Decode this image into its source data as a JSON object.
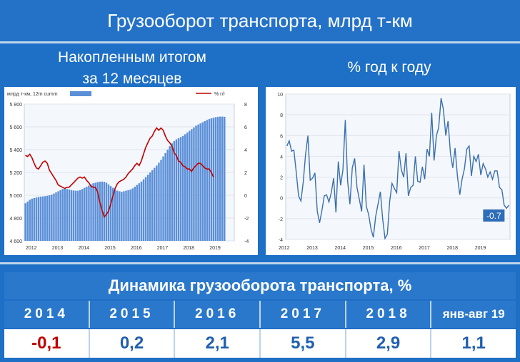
{
  "header": {
    "title": "Грузооборот транспорта, млрд т-км"
  },
  "left_subtitle": {
    "line1": "Накопленным итогом",
    "line2": "за 12 месяцев"
  },
  "right_subtitle": "% год к году",
  "chart_data": [
    {
      "type": "bar+line",
      "legend": {
        "bar_label": "млрд т-км, 12m cumm",
        "line_label": "% г/г"
      },
      "x_ticks": [
        "2012",
        "2013",
        "2014",
        "2015",
        "2016",
        "2017",
        "2018",
        "2019"
      ],
      "y_left": {
        "ticks": [
          "4 600",
          "4 800",
          "5 000",
          "5 200",
          "5 400",
          "5 600",
          "5 800"
        ],
        "range": [
          4600,
          5800
        ]
      },
      "y_right": {
        "ticks": [
          "-4",
          "-2",
          "0",
          "2",
          "4",
          "6",
          "8"
        ],
        "range": [
          -4,
          8
        ]
      },
      "bar_color": "#5b8fd8",
      "line_color": "#c00000",
      "series": [
        {
          "name": "млрд т-км, 12m cumm",
          "axis": "left",
          "kind": "bar",
          "step_months": 1,
          "values": [
            4930,
            4945,
            4960,
            4970,
            4975,
            4980,
            4985,
            4988,
            4990,
            4992,
            4995,
            5000,
            5005,
            5015,
            5025,
            5035,
            5045,
            5055,
            5060,
            5055,
            5050,
            5045,
            5042,
            5040,
            5040,
            5045,
            5055,
            5065,
            5075,
            5085,
            5095,
            5105,
            5110,
            5115,
            5118,
            5120,
            5118,
            5110,
            5095,
            5080,
            5065,
            5050,
            5040,
            5035,
            5030,
            5035,
            5040,
            5045,
            5050,
            5060,
            5075,
            5090,
            5105,
            5120,
            5140,
            5160,
            5180,
            5200,
            5220,
            5240,
            5260,
            5285,
            5310,
            5340,
            5370,
            5400,
            5430,
            5455,
            5475,
            5490,
            5500,
            5510,
            5520,
            5535,
            5550,
            5565,
            5580,
            5595,
            5610,
            5620,
            5630,
            5640,
            5650,
            5660,
            5668,
            5675,
            5680,
            5685,
            5688,
            5690,
            5690,
            5688
          ]
        },
        {
          "name": "% г/г",
          "axis": "right",
          "kind": "line",
          "step_months": 1,
          "values": [
            3.5,
            3.4,
            3.6,
            3.3,
            2.8,
            2.4,
            2.3,
            2.6,
            2.9,
            3.0,
            2.8,
            2.2,
            1.9,
            1.6,
            1.3,
            0.9,
            0.8,
            0.7,
            0.6,
            0.7,
            0.7,
            0.9,
            1.1,
            1.3,
            1.5,
            1.6,
            1.5,
            1.6,
            1.3,
            1.1,
            0.8,
            0.7,
            0.7,
            0.3,
            -0.6,
            -1.3,
            -1.9,
            -1.7,
            -1.4,
            -0.8,
            -0.1,
            0.6,
            1.0,
            1.2,
            1.3,
            1.4,
            1.6,
            1.9,
            2.1,
            2.3,
            2.6,
            2.8,
            2.6,
            3.0,
            3.6,
            4.2,
            4.6,
            5.0,
            5.2,
            5.6,
            5.9,
            5.7,
            5.9,
            5.7,
            5.2,
            4.8,
            4.6,
            4.3,
            3.7,
            3.5,
            3.0,
            2.9,
            2.6,
            2.5,
            2.3,
            2.3,
            2.1,
            2.4,
            2.6,
            2.8,
            2.8,
            2.6,
            2.4,
            2.3,
            2.3,
            2.0,
            1.6
          ]
        }
      ]
    },
    {
      "type": "line",
      "x_ticks": [
        "2012",
        "2013",
        "2014",
        "2015",
        "2016",
        "2017",
        "2018",
        "2019"
      ],
      "y": {
        "ticks": [
          "-4",
          "-2",
          "0",
          "2",
          "4",
          "6",
          "8",
          "10"
        ],
        "range": [
          -4,
          10
        ]
      },
      "line_color": "#3a6fb0",
      "last_value_label": "-0.7",
      "series": [
        {
          "name": "% год к году",
          "step_months": 1,
          "values": [
            5.0,
            5.5,
            4.5,
            4.6,
            2.5,
            0.2,
            -0.3,
            1.5,
            4.2,
            6.0,
            1.7,
            1.9,
            2.4,
            -1.3,
            -2.4,
            -1.2,
            0.2,
            0.3,
            -0.4,
            0.5,
            1.9,
            -1.4,
            3.5,
            1.2,
            2.7,
            7.5,
            1.6,
            -0.6,
            2.9,
            3.8,
            1.0,
            -0.1,
            -1.3,
            3.2,
            -0.8,
            -1.6,
            -3.0,
            -3.8,
            -1.8,
            -0.6,
            0.6,
            -2.0,
            -3.9,
            -3.5,
            -0.3,
            1.4,
            0.9,
            0.5,
            4.5,
            2.7,
            2.0,
            4.3,
            0.2,
            1.0,
            1.2,
            4.0,
            1.6,
            1.5,
            3.0,
            1.8,
            4.7,
            4.0,
            8.2,
            3.6,
            6.0,
            6.8,
            9.6,
            8.5,
            6.0,
            7.4,
            4.3,
            2.9,
            4.8,
            2.1,
            0.3,
            1.8,
            2.8,
            4.7,
            5.0,
            2.1,
            4.0,
            3.5,
            4.2,
            2.2,
            3.3,
            2.8,
            2.0,
            2.5,
            1.8,
            2.6,
            2.6,
            1.0,
            0.8,
            -0.7,
            -1.0,
            -0.7
          ]
        }
      ]
    }
  ],
  "table": {
    "title": "Динамика грузооборота транспорта, %",
    "years": [
      "2014",
      "2015",
      "2016",
      "2017",
      "2018",
      "янв-авг 19"
    ],
    "values": [
      "-0,1",
      "0,2",
      "2,1",
      "5,5",
      "2,9",
      "1,1"
    ],
    "value_colors": [
      "#c00000",
      "#1f5fae",
      "#1f5fae",
      "#1f5fae",
      "#1f5fae",
      "#1f5fae"
    ]
  }
}
